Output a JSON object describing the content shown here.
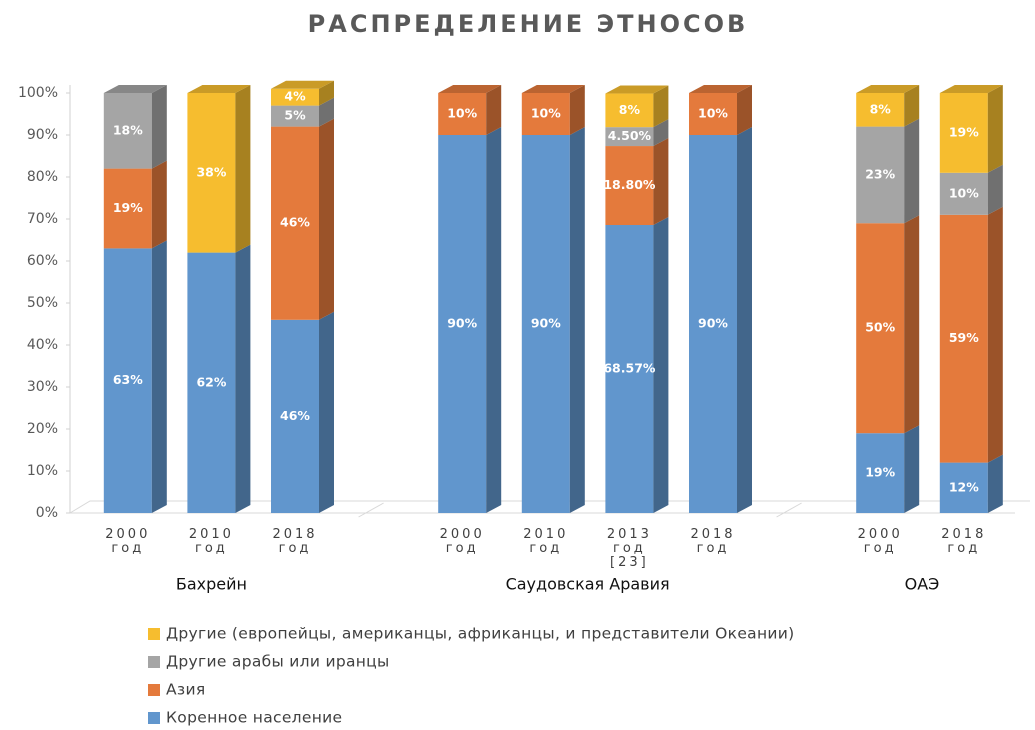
{
  "chart_data": {
    "type": "stacked_bar_3d",
    "title": "РАСПРЕДЕЛЕНИЕ ЭТНОСОВ",
    "groups": [
      {
        "name": "Бахрейн",
        "categories": [
          "2000 год",
          "2010 год",
          "2018 год"
        ]
      },
      {
        "name": "Саудовская Аравия",
        "categories": [
          "2000 год",
          "2010 год",
          "2013 год [23]",
          "2018 год"
        ]
      },
      {
        "name": "ОАЭ",
        "categories": [
          "2000 год",
          "2018 год"
        ]
      }
    ],
    "series": [
      {
        "name": "Коренное население",
        "color": "#6196cd",
        "values": [
          63,
          62,
          46,
          90,
          90,
          68.57,
          90,
          19,
          12
        ],
        "value_labels": [
          "63%",
          "62%",
          "46%",
          "90%",
          "90%",
          "68.57%",
          "90%",
          "19%",
          "12%"
        ]
      },
      {
        "name": "Азия",
        "color": "#e47a3c",
        "values": [
          19,
          null,
          46,
          10,
          10,
          18.8,
          10,
          50,
          59
        ],
        "value_labels": [
          "19%",
          null,
          "46%",
          "10%",
          "10%",
          "18.80%",
          "10%",
          "50%",
          "59%"
        ]
      },
      {
        "name": "Другие арабы или иранцы",
        "color": "#a5a5a5",
        "values": [
          18,
          null,
          5,
          null,
          null,
          4.5,
          null,
          23,
          10
        ],
        "value_labels": [
          "18%",
          null,
          "5%",
          null,
          null,
          "4.50%",
          null,
          "23%",
          "10%"
        ]
      },
      {
        "name": "Другие (европейцы, американцы, африканцы, и представители Океании)",
        "color": "#f6bd2f",
        "values": [
          null,
          38,
          4,
          null,
          null,
          8,
          null,
          8,
          19
        ],
        "value_labels": [
          null,
          "38%",
          "4%",
          null,
          null,
          "8%",
          null,
          "8%",
          "19%"
        ]
      }
    ],
    "ylim": [
      0,
      100
    ],
    "yticks": [
      {
        "value": 0,
        "label": "0%"
      },
      {
        "value": 10,
        "label": "10%"
      },
      {
        "value": 20,
        "label": "20%"
      },
      {
        "value": 30,
        "label": "30%"
      },
      {
        "value": 40,
        "label": "40%"
      },
      {
        "value": 50,
        "label": "50%"
      },
      {
        "value": 60,
        "label": "60%"
      },
      {
        "value": 70,
        "label": "70%"
      },
      {
        "value": 80,
        "label": "80%"
      },
      {
        "value": 90,
        "label": "90%"
      },
      {
        "value": 100,
        "label": "100%"
      }
    ],
    "grid": false
  }
}
